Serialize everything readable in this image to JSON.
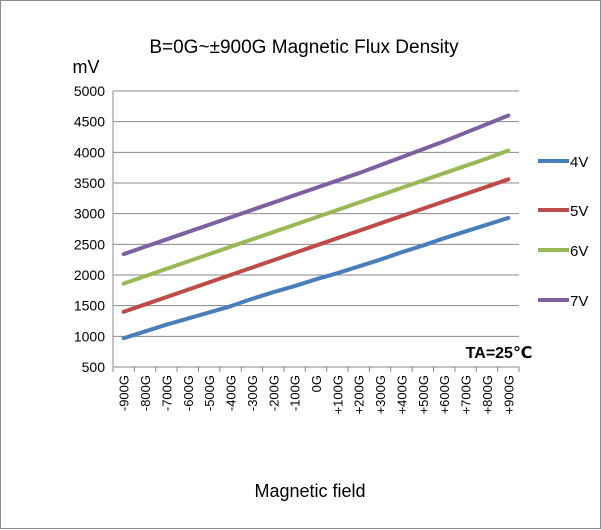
{
  "chart_data": {
    "type": "line",
    "title": "B=0G~±900G Magnetic Flux Density",
    "ylabel": "mV",
    "xlabel": "Magnetic field",
    "annotation": "TA=25℃",
    "ylim": [
      500,
      5000
    ],
    "yticks": [
      500,
      1000,
      1500,
      2000,
      2500,
      3000,
      3500,
      4000,
      4500,
      5000
    ],
    "grid": "horizontal",
    "legend": "right",
    "categories": [
      "-900G",
      "-800G",
      "-700G",
      "-600G",
      "-500G",
      "-400G",
      "-300G",
      "-200G",
      "-100G",
      "0G",
      "+100G",
      "+200G",
      "+300G",
      "+400G",
      "+500G",
      "+600G",
      "+700G",
      "+800G",
      "+900G"
    ],
    "series": [
      {
        "name": "4V",
        "color": "#4a7ebb",
        "values": [
          970,
          1080,
          1190,
          1290,
          1390,
          1490,
          1610,
          1720,
          1820,
          1930,
          2030,
          2140,
          2250,
          2370,
          2480,
          2600,
          2710,
          2820,
          2930
        ]
      },
      {
        "name": "5V",
        "color": "#be4b48",
        "values": [
          1400,
          1520,
          1640,
          1760,
          1880,
          2000,
          2120,
          2240,
          2360,
          2480,
          2600,
          2720,
          2840,
          2960,
          3080,
          3200,
          3320,
          3440,
          3560
        ]
      },
      {
        "name": "6V",
        "color": "#98b954",
        "values": [
          1860,
          1980,
          2100,
          2220,
          2340,
          2460,
          2580,
          2700,
          2820,
          2940,
          3060,
          3180,
          3300,
          3420,
          3540,
          3660,
          3780,
          3900,
          4030
        ]
      },
      {
        "name": "7V",
        "color": "#7d60a0",
        "values": [
          2340,
          2460,
          2580,
          2700,
          2820,
          2940,
          3060,
          3180,
          3300,
          3420,
          3540,
          3660,
          3790,
          3920,
          4050,
          4180,
          4320,
          4460,
          4600
        ]
      }
    ]
  }
}
